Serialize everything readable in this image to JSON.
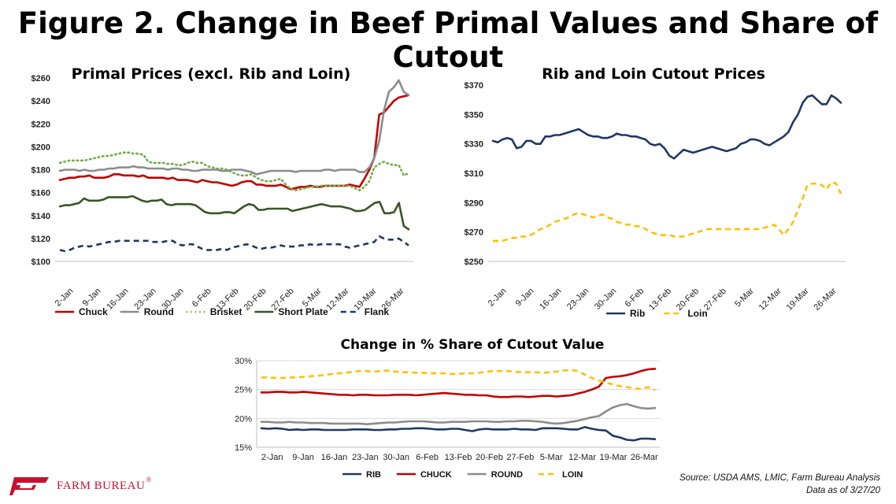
{
  "figure_title": "Figure 2. Change in Beef Primal Values and Share of Cutout",
  "brand": {
    "logo_text": "FARM BUREAU",
    "registered": "®"
  },
  "source": {
    "line1": "Source: USDA AMS, LMIC, Farm Bureau Analysis",
    "line2": "Data as of 3/27/20"
  },
  "chart_data": [
    {
      "type": "line",
      "title": "Primal Prices (excl. Rib and Loin)",
      "xlabel": "",
      "ylabel": "",
      "ylim": [
        100,
        260
      ],
      "y_ticks": [
        100,
        120,
        140,
        160,
        180,
        200,
        220,
        240,
        260
      ],
      "y_tick_labels": [
        "$100",
        "$120",
        "$140",
        "$160",
        "$180",
        "$200",
        "$220",
        "$240",
        "$260"
      ],
      "x_tick_labels": [
        "2-Jan",
        "9-Jan",
        "16-Jan",
        "23-Jan",
        "30-Jan",
        "6-Feb",
        "13-Feb",
        "20-Feb",
        "27-Feb",
        "5-Mar",
        "12-Mar",
        "19-Mar",
        "26-Mar"
      ],
      "legend_position": "bottom",
      "series": [
        {
          "name": "Chuck",
          "color": "#c00000",
          "dash": "solid",
          "values": [
            171,
            172,
            173,
            173,
            174,
            174,
            175,
            173,
            173,
            173,
            174,
            176,
            176,
            175,
            175,
            175,
            174,
            175,
            173,
            173,
            173,
            173,
            172,
            173,
            171,
            171,
            171,
            170,
            169,
            171,
            170,
            169,
            169,
            168,
            167,
            166,
            167,
            169,
            170,
            170,
            167,
            167,
            166,
            166,
            166,
            167,
            165,
            163,
            164,
            165,
            165,
            166,
            165,
            165,
            166,
            166,
            166,
            166,
            166,
            167,
            166,
            165,
            172,
            180,
            190,
            228,
            230,
            235,
            240,
            243,
            244,
            245
          ]
        },
        {
          "name": "Round",
          "color": "#8c8c8c",
          "dash": "solid",
          "values": [
            179,
            180,
            180,
            180,
            179,
            180,
            179,
            179,
            180,
            180,
            181,
            181,
            182,
            182,
            182,
            183,
            182,
            182,
            181,
            181,
            181,
            181,
            180,
            181,
            181,
            180,
            180,
            179,
            179,
            180,
            180,
            180,
            180,
            179,
            179,
            180,
            180,
            180,
            179,
            178,
            176,
            177,
            178,
            179,
            179,
            179,
            179,
            179,
            178,
            179,
            179,
            179,
            179,
            179,
            180,
            180,
            179,
            180,
            180,
            180,
            180,
            178,
            178,
            182,
            190,
            205,
            232,
            248,
            252,
            258,
            248,
            245
          ]
        },
        {
          "name": "Brisket",
          "color": "#70ad47",
          "dash": "dot",
          "values": [
            186,
            187,
            188,
            188,
            188,
            188,
            189,
            190,
            191,
            192,
            192,
            193,
            194,
            195,
            195,
            194,
            194,
            193,
            187,
            186,
            186,
            186,
            185,
            185,
            184,
            184,
            186,
            187,
            186,
            186,
            183,
            182,
            181,
            181,
            180,
            178,
            176,
            175,
            175,
            176,
            173,
            171,
            170,
            170,
            171,
            172,
            167,
            163,
            162,
            163,
            164,
            165,
            165,
            166,
            166,
            166,
            166,
            166,
            166,
            166,
            164,
            162,
            165,
            170,
            182,
            185,
            187,
            185,
            184,
            184,
            175,
            177
          ]
        },
        {
          "name": "Short Plate",
          "color": "#375623",
          "dash": "solid",
          "values": [
            148,
            149,
            149,
            150,
            151,
            155,
            153,
            153,
            153,
            154,
            156,
            156,
            156,
            156,
            156,
            157,
            155,
            153,
            152,
            153,
            153,
            154,
            150,
            149,
            150,
            150,
            150,
            150,
            149,
            146,
            143,
            142,
            142,
            142,
            143,
            143,
            142,
            145,
            148,
            150,
            149,
            145,
            145,
            146,
            146,
            146,
            146,
            146,
            144,
            145,
            146,
            147,
            148,
            149,
            150,
            149,
            148,
            148,
            148,
            147,
            146,
            144,
            144,
            145,
            148,
            151,
            152,
            142,
            142,
            143,
            151,
            131,
            128
          ]
        },
        {
          "name": "Flank",
          "color": "#1f3864",
          "dash": "dash",
          "values": [
            110,
            109,
            110,
            112,
            113,
            114,
            113,
            114,
            115,
            116,
            117,
            117,
            118,
            118,
            118,
            118,
            118,
            118,
            118,
            117,
            117,
            117,
            118,
            118,
            115,
            114,
            115,
            115,
            113,
            111,
            110,
            110,
            110,
            111,
            110,
            112,
            113,
            114,
            115,
            114,
            112,
            111,
            112,
            112,
            113,
            114,
            113,
            113,
            113,
            114,
            114,
            115,
            114,
            115,
            115,
            115,
            115,
            115,
            113,
            112,
            113,
            114,
            115,
            116,
            117,
            122,
            120,
            119,
            119,
            120,
            117,
            114
          ]
        }
      ]
    },
    {
      "type": "line",
      "title": "Rib and Loin Cutout Prices",
      "xlabel": "",
      "ylabel": "",
      "ylim": [
        250,
        370
      ],
      "y_ticks": [
        250,
        270,
        290,
        310,
        330,
        350,
        370
      ],
      "y_tick_labels": [
        "$250",
        "$270",
        "$290",
        "$310",
        "$330",
        "$350",
        "$370"
      ],
      "x_tick_labels": [
        "2-Jan",
        "9-Jan",
        "16-Jan",
        "23-Jan",
        "30-Jan",
        "6-Feb",
        "13-Feb",
        "20-Feb",
        "27-Feb",
        "5-Mar",
        "12-Mar",
        "19-Mar",
        "26-Mar"
      ],
      "legend_position": "bottom",
      "series": [
        {
          "name": "Rib",
          "color": "#1f3864",
          "dash": "solid",
          "values": [
            332,
            331,
            333,
            334,
            333,
            327,
            328,
            332,
            332,
            330,
            330,
            335,
            335,
            336,
            336,
            337,
            338,
            339,
            340,
            338,
            336,
            335,
            335,
            334,
            334,
            335,
            337,
            336,
            336,
            335,
            335,
            334,
            333,
            330,
            329,
            330,
            327,
            322,
            320,
            323,
            326,
            325,
            324,
            325,
            326,
            327,
            328,
            327,
            326,
            325,
            326,
            327,
            330,
            331,
            333,
            333,
            332,
            330,
            329,
            331,
            333,
            335,
            338,
            345,
            350,
            358,
            362,
            363,
            360,
            357,
            357,
            363,
            361,
            358
          ]
        },
        {
          "name": "Loin",
          "color": "#ffc000",
          "dash": "dash",
          "values": [
            264,
            264,
            264,
            265,
            266,
            266,
            267,
            267,
            268,
            270,
            272,
            273,
            275,
            277,
            278,
            279,
            280,
            282,
            283,
            282,
            281,
            280,
            281,
            282,
            280,
            279,
            277,
            276,
            275,
            275,
            274,
            274,
            272,
            270,
            269,
            268,
            268,
            268,
            267,
            267,
            267,
            268,
            269,
            270,
            271,
            272,
            272,
            272,
            272,
            272,
            272,
            272,
            272,
            272,
            272,
            272,
            272,
            273,
            274,
            275,
            272,
            268,
            272,
            277,
            285,
            293,
            302,
            303,
            303,
            302,
            299,
            304,
            303,
            296
          ]
        }
      ]
    },
    {
      "type": "line",
      "title": "Change in % Share of Cutout Value",
      "xlabel": "",
      "ylabel": "",
      "ylim": [
        15,
        30
      ],
      "y_ticks": [
        15,
        20,
        25,
        30
      ],
      "y_tick_labels": [
        "15%",
        "20%",
        "25%",
        "30%"
      ],
      "x_tick_labels": [
        "2-Jan",
        "9-Jan",
        "16-Jan",
        "23-Jan",
        "30-Jan",
        "6-Feb",
        "13-Feb",
        "20-Feb",
        "27-Feb",
        "5-Mar",
        "12-Mar",
        "19-Mar",
        "26-Mar"
      ],
      "legend_position": "bottom",
      "series": [
        {
          "name": "RIB",
          "color": "#1f3864",
          "dash": "solid",
          "values": [
            18.3,
            18.2,
            18.3,
            18.2,
            18.0,
            18.1,
            18.0,
            18.1,
            18.1,
            18.0,
            18.0,
            18.0,
            18.0,
            18.1,
            18.1,
            18.1,
            18.0,
            18.0,
            18.1,
            18.1,
            18.2,
            18.2,
            18.3,
            18.3,
            18.2,
            18.1,
            18.1,
            18.2,
            18.2,
            18.0,
            17.8,
            18.1,
            18.2,
            18.1,
            18.1,
            18.1,
            18.2,
            18.1,
            18.1,
            18.0,
            18.3,
            18.3,
            18.3,
            18.2,
            18.1,
            18.1,
            18.5,
            18.2,
            18.0,
            17.9,
            17.0,
            16.7,
            16.3,
            16.2,
            16.5,
            16.5,
            16.4
          ]
        },
        {
          "name": "CHUCK",
          "color": "#c00000",
          "dash": "solid",
          "values": [
            24.5,
            24.5,
            24.6,
            24.6,
            24.5,
            24.5,
            24.6,
            24.5,
            24.4,
            24.3,
            24.2,
            24.1,
            24.1,
            24.0,
            24.1,
            24.1,
            24.0,
            24.0,
            24.0,
            24.1,
            24.1,
            24.1,
            24.0,
            24.1,
            24.2,
            24.3,
            24.4,
            24.3,
            24.2,
            24.1,
            24.1,
            24.0,
            24.0,
            23.8,
            23.7,
            23.7,
            23.8,
            23.8,
            23.7,
            23.8,
            23.9,
            23.9,
            23.8,
            23.9,
            24.0,
            24.3,
            24.6,
            25.0,
            25.5,
            27.0,
            27.2,
            27.3,
            27.5,
            27.8,
            28.2,
            28.5,
            28.6
          ]
        },
        {
          "name": "ROUND",
          "color": "#8c8c8c",
          "dash": "solid",
          "values": [
            19.4,
            19.4,
            19.3,
            19.3,
            19.4,
            19.3,
            19.3,
            19.2,
            19.2,
            19.2,
            19.1,
            19.1,
            19.1,
            19.1,
            19.1,
            19.0,
            19.1,
            19.2,
            19.3,
            19.3,
            19.4,
            19.5,
            19.5,
            19.5,
            19.4,
            19.3,
            19.3,
            19.4,
            19.4,
            19.4,
            19.5,
            19.5,
            19.5,
            19.4,
            19.4,
            19.5,
            19.5,
            19.6,
            19.6,
            19.5,
            19.4,
            19.2,
            19.1,
            19.2,
            19.4,
            19.6,
            19.9,
            20.2,
            20.4,
            21.2,
            21.9,
            22.3,
            22.5,
            22.1,
            21.8,
            21.7,
            21.8
          ]
        },
        {
          "name": "LOIN",
          "color": "#ffc000",
          "dash": "dash",
          "values": [
            27.1,
            27.1,
            27.0,
            27.0,
            27.1,
            27.1,
            27.2,
            27.3,
            27.4,
            27.5,
            27.7,
            27.8,
            27.9,
            28.1,
            28.2,
            28.2,
            28.1,
            28.2,
            28.3,
            28.1,
            28.0,
            28.0,
            27.9,
            27.9,
            27.8,
            27.8,
            27.8,
            27.7,
            27.7,
            27.8,
            27.8,
            27.9,
            28.1,
            28.2,
            28.2,
            28.2,
            28.1,
            28.0,
            28.0,
            28.0,
            27.9,
            28.0,
            28.1,
            28.3,
            28.4,
            28.2,
            27.6,
            27.0,
            26.6,
            26.2,
            25.9,
            25.6,
            25.4,
            25.2,
            25.1,
            25.4,
            24.9
          ]
        }
      ]
    }
  ]
}
